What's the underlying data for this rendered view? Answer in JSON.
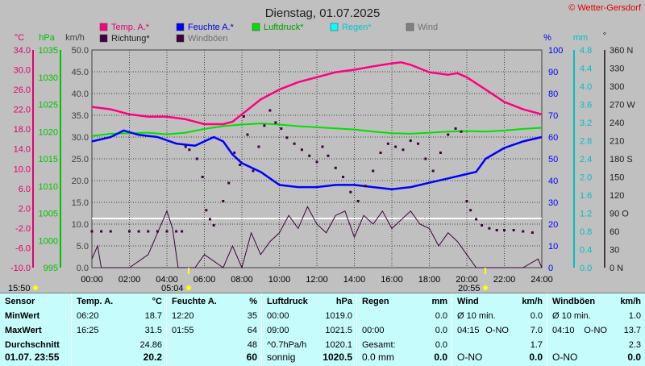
{
  "chart_data": {
    "type": "line",
    "title": "Dienstag, 01.07.2025",
    "copyright": "© Wetter-Gersdorf",
    "legend": [
      {
        "name": "Temp. A.*",
        "color": "#ff007f"
      },
      {
        "name": "Feuchte A.*",
        "color": "#0000ff"
      },
      {
        "name": "Luftdruck*",
        "color": "#00e000"
      },
      {
        "name": "Regen*",
        "color": "#00ffff"
      },
      {
        "name": "Wind",
        "color": "#808080"
      },
      {
        "name": "Richtung*",
        "color": "#3f0040"
      },
      {
        "name": "Windböen",
        "color": "#3f0040"
      }
    ],
    "axes": {
      "temp": {
        "unit": "°C",
        "ticks": [
          "34.0",
          "30.0",
          "26.0",
          "22.0",
          "18.0",
          "14.0",
          "10.0",
          "6.0",
          "2.0",
          "-2.0",
          "-6.0",
          "-10.0"
        ],
        "color": "#e00070"
      },
      "hpa": {
        "unit": "hPa",
        "ticks": [
          "1035",
          "1030",
          "1025",
          "1020",
          "1015",
          "1010",
          "1005",
          "1000",
          "995"
        ],
        "color": "#00c000"
      },
      "kmh": {
        "unit": "km/h",
        "ticks": [
          "50.0",
          "45.0",
          "40.0",
          "35.0",
          "30.0",
          "25.0",
          "20.0",
          "15.0",
          "10.0",
          "5.0",
          "0.0"
        ],
        "color": "#404040"
      },
      "pct": {
        "unit": "%",
        "ticks": [
          "100",
          "90",
          "80",
          "70",
          "60",
          "50",
          "40",
          "30",
          "20",
          "10",
          "0"
        ],
        "color": "#0000ff"
      },
      "mm": {
        "unit": "mm",
        "ticks": [
          "4.8",
          "4.4",
          "4.0",
          "3.6",
          "3.2",
          "2.8",
          "2.4",
          "2.0",
          "1.6",
          "1.2",
          "0.8",
          "0.4",
          "0.0"
        ],
        "color": "#00c0c0"
      },
      "dir": {
        "unit": "°",
        "ticks": [
          "360 N",
          "330",
          "300",
          "270 W",
          "240",
          "210",
          "180 S",
          "150",
          "120",
          "90 O",
          "60",
          "30",
          "0 N"
        ],
        "color": "#202020"
      },
      "x": {
        "ticks": [
          "00:00",
          "02:00",
          "04:00",
          "06:00",
          "08:00",
          "10:00",
          "12:00",
          "14:00",
          "16:00",
          "18:00",
          "20:00",
          "22:00",
          "24:00"
        ]
      }
    },
    "markers": {
      "sunrise_top": "15:50",
      "sunrise": "05:04",
      "sunset": "20:55"
    },
    "temperature": [
      [
        0,
        22.5
      ],
      [
        1,
        22.0
      ],
      [
        2,
        21.0
      ],
      [
        3,
        20.5
      ],
      [
        4,
        20.5
      ],
      [
        5,
        20.0
      ],
      [
        6,
        19.0
      ],
      [
        7,
        19.0
      ],
      [
        7.5,
        19.5
      ],
      [
        8,
        21.0
      ],
      [
        9,
        24.0
      ],
      [
        10,
        26.0
      ],
      [
        11,
        27.5
      ],
      [
        12,
        28.5
      ],
      [
        13,
        29.5
      ],
      [
        14,
        30.0
      ],
      [
        15,
        30.7
      ],
      [
        16,
        31.3
      ],
      [
        16.5,
        31.5
      ],
      [
        17,
        31.0
      ],
      [
        18,
        29.5
      ],
      [
        19,
        29.0
      ],
      [
        19.5,
        29.3
      ],
      [
        20,
        28.5
      ],
      [
        21,
        26.0
      ],
      [
        22,
        23.5
      ],
      [
        23,
        22.0
      ],
      [
        24,
        21.0
      ]
    ],
    "humidity": [
      [
        0,
        58
      ],
      [
        1,
        60
      ],
      [
        1.7,
        63
      ],
      [
        2.5,
        61
      ],
      [
        3.5,
        60
      ],
      [
        4.5,
        57
      ],
      [
        5.5,
        56
      ],
      [
        6,
        58
      ],
      [
        6.5,
        60
      ],
      [
        7,
        58
      ],
      [
        7.5,
        52
      ],
      [
        8,
        48
      ],
      [
        9,
        44
      ],
      [
        10,
        38
      ],
      [
        11,
        37
      ],
      [
        12,
        37
      ],
      [
        13,
        38
      ],
      [
        14,
        38
      ],
      [
        15,
        37
      ],
      [
        16,
        36
      ],
      [
        17,
        37
      ],
      [
        18,
        39
      ],
      [
        19,
        41
      ],
      [
        20,
        43
      ],
      [
        20.5,
        44
      ],
      [
        21,
        50
      ],
      [
        22,
        55
      ],
      [
        23,
        58
      ],
      [
        24,
        60
      ]
    ],
    "pressure": [
      [
        0,
        1019.2
      ],
      [
        1,
        1019.6
      ],
      [
        2,
        1019.7
      ],
      [
        3,
        1019.8
      ],
      [
        4,
        1019.5
      ],
      [
        5,
        1019.8
      ],
      [
        6,
        1020.5
      ],
      [
        7,
        1021.0
      ],
      [
        8,
        1021.3
      ],
      [
        9,
        1021.5
      ],
      [
        10,
        1021.3
      ],
      [
        11,
        1021.0
      ],
      [
        12,
        1020.8
      ],
      [
        13,
        1020.6
      ],
      [
        14,
        1020.4
      ],
      [
        15,
        1020.0
      ],
      [
        16,
        1019.7
      ],
      [
        17,
        1019.6
      ],
      [
        18,
        1019.8
      ],
      [
        19,
        1020.0
      ],
      [
        20,
        1020.1
      ],
      [
        21,
        1020.0
      ],
      [
        22,
        1020.2
      ],
      [
        23,
        1020.5
      ],
      [
        24,
        1020.7
      ]
    ],
    "direction_points": [
      [
        0,
        60
      ],
      [
        0.5,
        60
      ],
      [
        1,
        60
      ],
      [
        2,
        60
      ],
      [
        2.5,
        60
      ],
      [
        3,
        60
      ],
      [
        3.5,
        60
      ],
      [
        4,
        60
      ],
      [
        4.5,
        60
      ],
      [
        4.8,
        60
      ],
      [
        5,
        200
      ],
      [
        5.2,
        195
      ],
      [
        5.6,
        180
      ],
      [
        5.9,
        150
      ],
      [
        6.1,
        95
      ],
      [
        6.3,
        80
      ],
      [
        6.5,
        70
      ],
      [
        7,
        110
      ],
      [
        7.3,
        140
      ],
      [
        7.6,
        190
      ],
      [
        7.9,
        170
      ],
      [
        8.1,
        250
      ],
      [
        8.3,
        220
      ],
      [
        8.6,
        160
      ],
      [
        8.9,
        200
      ],
      [
        9.2,
        235
      ],
      [
        9.5,
        260
      ],
      [
        9.8,
        240
      ],
      [
        10.1,
        230
      ],
      [
        10.4,
        215
      ],
      [
        10.8,
        205
      ],
      [
        11.2,
        195
      ],
      [
        11.6,
        185
      ],
      [
        12,
        175
      ],
      [
        12.3,
        200
      ],
      [
        12.6,
        185
      ],
      [
        13,
        165
      ],
      [
        13.4,
        150
      ],
      [
        13.8,
        125
      ],
      [
        14.2,
        110
      ],
      [
        14.6,
        135
      ],
      [
        15,
        160
      ],
      [
        15.4,
        190
      ],
      [
        15.8,
        205
      ],
      [
        16.2,
        200
      ],
      [
        16.6,
        195
      ],
      [
        17,
        210
      ],
      [
        17.4,
        205
      ],
      [
        17.8,
        180
      ],
      [
        18.2,
        160
      ],
      [
        18.6,
        190
      ],
      [
        19,
        220
      ],
      [
        19.4,
        230
      ],
      [
        19.7,
        225
      ],
      [
        20,
        110
      ],
      [
        20.2,
        95
      ],
      [
        20.5,
        80
      ],
      [
        20.8,
        70
      ],
      [
        21.2,
        65
      ],
      [
        21.6,
        62
      ],
      [
        22,
        62
      ],
      [
        22.5,
        62
      ],
      [
        23,
        60
      ],
      [
        23.5,
        58
      ]
    ],
    "gusts": [
      [
        0,
        2
      ],
      [
        0.3,
        5
      ],
      [
        0.5,
        0
      ],
      [
        1,
        0
      ],
      [
        2,
        0
      ],
      [
        3,
        3
      ],
      [
        3.5,
        8
      ],
      [
        4,
        13
      ],
      [
        4.3,
        9
      ],
      [
        4.6,
        0
      ],
      [
        5,
        0
      ],
      [
        5.5,
        0
      ],
      [
        6,
        3
      ],
      [
        7,
        0
      ],
      [
        7.5,
        5
      ],
      [
        8,
        0
      ],
      [
        8.5,
        8
      ],
      [
        9,
        3
      ],
      [
        9.5,
        6
      ],
      [
        10,
        8
      ],
      [
        10.5,
        12
      ],
      [
        11,
        9
      ],
      [
        11.5,
        14
      ],
      [
        12,
        10
      ],
      [
        12.5,
        8
      ],
      [
        13,
        12
      ],
      [
        13.5,
        13
      ],
      [
        14,
        7
      ],
      [
        14.5,
        12
      ],
      [
        15,
        10
      ],
      [
        15.5,
        13
      ],
      [
        16,
        9
      ],
      [
        16.5,
        11
      ],
      [
        17,
        13
      ],
      [
        17.5,
        10
      ],
      [
        18,
        9
      ],
      [
        18.5,
        5
      ],
      [
        19,
        8
      ],
      [
        19.5,
        6
      ],
      [
        20,
        3
      ],
      [
        20.5,
        0
      ],
      [
        21,
        0
      ],
      [
        22,
        0
      ],
      [
        23,
        0
      ],
      [
        23.8,
        2
      ],
      [
        24,
        0
      ]
    ]
  },
  "table": {
    "columns": [
      {
        "title": "Sensor",
        "unit": "",
        "rows": [
          [
            "MinWert",
            "",
            ""
          ],
          [
            "MaxWert",
            "",
            ""
          ],
          [
            "Durchschnitt",
            "",
            ""
          ]
        ],
        "last": [
          "01.07. 23:55",
          ""
        ]
      },
      {
        "title": "Temp. A.",
        "unit": "°C",
        "rows": [
          [
            "06:20",
            "",
            "18.7"
          ],
          [
            "16:25",
            "",
            "31.5"
          ],
          [
            "",
            "",
            "24.86"
          ]
        ],
        "last": [
          "",
          "20.2"
        ]
      },
      {
        "title": "Feuchte A.",
        "unit": "%",
        "rows": [
          [
            "12:20",
            "",
            "35"
          ],
          [
            "01:55",
            "",
            "64"
          ],
          [
            "",
            "",
            "48"
          ]
        ],
        "last": [
          "",
          "60"
        ]
      },
      {
        "title": "Luftdruck",
        "unit": "hPa",
        "rows": [
          [
            "00:00",
            "",
            "1019.0"
          ],
          [
            "09:00",
            "",
            "1021.5"
          ],
          [
            "^0.7hPa/h",
            "",
            "1020.1"
          ]
        ],
        "last": [
          "sonnig",
          "1020.5"
        ]
      },
      {
        "title": "Regen",
        "unit": "mm",
        "rows": [
          [
            "",
            "",
            "0.0"
          ],
          [
            "00:00",
            "",
            "0.0"
          ],
          [
            "Gesamt:",
            "",
            "0.0"
          ]
        ],
        "last": [
          "0.0 mm",
          "0.0"
        ]
      },
      {
        "title": "Wind",
        "unit": "km/h",
        "rows": [
          [
            "Ø 10 min.",
            "",
            "0.0"
          ],
          [
            "04:15",
            "O-NO",
            "7.0"
          ],
          [
            "",
            "",
            "1.7"
          ]
        ],
        "last": [
          "O-NO",
          "0.0"
        ]
      },
      {
        "title": "Windböen",
        "unit": "km/h",
        "rows": [
          [
            "Ø 10 min.",
            "",
            "1.0"
          ],
          [
            "04:10",
            "O-NO",
            "13.7"
          ],
          [
            "",
            "",
            "2.3"
          ]
        ],
        "last": [
          "O-NO",
          "0.0"
        ]
      }
    ]
  }
}
